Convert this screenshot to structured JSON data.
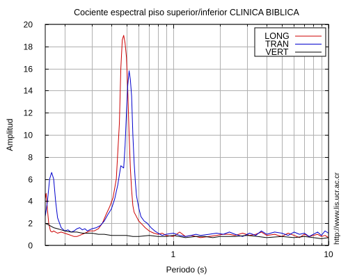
{
  "chart_data": {
    "type": "line",
    "title": "Cociente espectral piso superior/inferior  CLINICA BIBLICA",
    "xlabel": "Periodo (s)",
    "ylabel": "Amplitud",
    "xscale": "log",
    "xlim": [
      0.15,
      10
    ],
    "ylim": [
      0,
      20
    ],
    "grid": true,
    "legend_position": "top-right",
    "x_ticks": [
      {
        "value": 1,
        "label": "1"
      },
      {
        "value": 10,
        "label": "10"
      }
    ],
    "y_ticks": [
      {
        "value": 0,
        "label": "0"
      },
      {
        "value": 2,
        "label": "2"
      },
      {
        "value": 4,
        "label": "4"
      },
      {
        "value": 6,
        "label": "6"
      },
      {
        "value": 8,
        "label": "8"
      },
      {
        "value": 10,
        "label": "10"
      },
      {
        "value": 12,
        "label": "12"
      },
      {
        "value": 14,
        "label": "14"
      },
      {
        "value": 16,
        "label": "16"
      },
      {
        "value": 18,
        "label": "18"
      },
      {
        "value": 20,
        "label": "20"
      }
    ],
    "series": [
      {
        "name": "LONG",
        "color": "#cc0000",
        "x": [
          0.15,
          0.152,
          0.155,
          0.158,
          0.162,
          0.166,
          0.17,
          0.175,
          0.18,
          0.19,
          0.2,
          0.21,
          0.22,
          0.23,
          0.24,
          0.25,
          0.27,
          0.29,
          0.31,
          0.33,
          0.35,
          0.37,
          0.39,
          0.41,
          0.43,
          0.45,
          0.46,
          0.47,
          0.48,
          0.49,
          0.5,
          0.51,
          0.52,
          0.53,
          0.54,
          0.55,
          0.56,
          0.58,
          0.6,
          0.63,
          0.66,
          0.7,
          0.75,
          0.8,
          0.85,
          0.9,
          1.0,
          1.1,
          1.2,
          1.3,
          1.4,
          1.5,
          1.7,
          1.9,
          2.1,
          2.3,
          2.5,
          2.8,
          3.1,
          3.4,
          3.7,
          4.0,
          4.5,
          5.0,
          5.5,
          6.0,
          6.5,
          7.0,
          7.5,
          8.0,
          8.5,
          9.0,
          9.5,
          10.0
        ],
        "y": [
          4.2,
          4.7,
          3.2,
          2.0,
          1.3,
          1.2,
          1.3,
          1.2,
          1.1,
          1.2,
          1.1,
          1.0,
          0.9,
          0.8,
          0.8,
          0.9,
          1.1,
          1.3,
          1.3,
          1.5,
          2.0,
          2.8,
          3.5,
          4.3,
          6.0,
          11.0,
          16.0,
          18.6,
          19.0,
          18.3,
          17.0,
          14.0,
          10.0,
          7.0,
          5.0,
          3.6,
          3.0,
          2.6,
          2.2,
          1.9,
          1.6,
          1.3,
          1.1,
          1.0,
          1.1,
          0.9,
          0.8,
          1.2,
          0.8,
          0.9,
          0.8,
          0.7,
          0.8,
          0.9,
          1.0,
          1.0,
          0.9,
          1.1,
          0.9,
          1.0,
          1.2,
          0.9,
          1.0,
          0.8,
          1.1,
          0.9,
          0.7,
          1.0,
          0.8,
          0.9,
          1.0,
          0.8,
          0.9,
          0.7
        ]
      },
      {
        "name": "TRAN",
        "color": "#0000cc",
        "x": [
          0.15,
          0.155,
          0.16,
          0.165,
          0.17,
          0.175,
          0.18,
          0.19,
          0.2,
          0.21,
          0.22,
          0.23,
          0.24,
          0.25,
          0.26,
          0.27,
          0.28,
          0.3,
          0.32,
          0.34,
          0.36,
          0.38,
          0.4,
          0.42,
          0.44,
          0.46,
          0.48,
          0.49,
          0.5,
          0.51,
          0.52,
          0.53,
          0.54,
          0.55,
          0.56,
          0.57,
          0.58,
          0.6,
          0.62,
          0.65,
          0.68,
          0.72,
          0.76,
          0.8,
          0.85,
          0.9,
          1.0,
          1.1,
          1.2,
          1.3,
          1.4,
          1.5,
          1.7,
          1.9,
          2.1,
          2.3,
          2.5,
          2.8,
          3.1,
          3.4,
          3.7,
          4.0,
          4.5,
          5.0,
          5.5,
          6.0,
          6.5,
          7.0,
          7.5,
          8.0,
          8.5,
          9.0,
          9.5,
          10.0
        ],
        "y": [
          2.6,
          4.0,
          6.0,
          6.6,
          6.0,
          4.0,
          2.5,
          1.6,
          1.3,
          1.4,
          1.2,
          1.3,
          1.5,
          1.6,
          1.4,
          1.5,
          1.3,
          1.5,
          1.6,
          1.8,
          2.2,
          2.8,
          3.3,
          4.2,
          5.5,
          7.2,
          7.0,
          9.0,
          12.0,
          14.5,
          15.8,
          15.0,
          13.5,
          10.0,
          7.5,
          5.8,
          4.5,
          3.4,
          2.6,
          2.2,
          2.0,
          1.6,
          1.3,
          1.1,
          0.9,
          1.0,
          1.1,
          0.9,
          0.8,
          0.9,
          1.0,
          0.9,
          1.0,
          1.1,
          1.0,
          1.2,
          1.0,
          0.8,
          1.1,
          0.9,
          1.3,
          1.0,
          1.2,
          1.1,
          0.9,
          1.2,
          1.0,
          1.1,
          0.8,
          1.0,
          1.2,
          0.9,
          1.3,
          1.1
        ]
      },
      {
        "name": "VERT",
        "color": "#000000",
        "x": [
          0.15,
          0.16,
          0.17,
          0.18,
          0.19,
          0.2,
          0.22,
          0.24,
          0.26,
          0.28,
          0.3,
          0.33,
          0.36,
          0.4,
          0.45,
          0.5,
          0.55,
          0.6,
          0.7,
          0.8,
          0.9,
          1.0,
          1.2,
          1.4,
          1.6,
          1.8,
          2.0,
          2.5,
          3.0,
          3.5,
          4.0,
          5.0,
          6.0,
          7.0,
          8.0,
          9.0,
          10.0
        ],
        "y": [
          2.0,
          1.8,
          1.6,
          1.5,
          1.4,
          1.3,
          1.2,
          1.2,
          1.1,
          1.1,
          1.1,
          1.0,
          1.0,
          0.9,
          0.9,
          0.9,
          0.8,
          0.8,
          0.9,
          0.8,
          0.8,
          0.9,
          0.7,
          0.8,
          0.8,
          0.7,
          0.8,
          0.8,
          0.9,
          0.8,
          0.7,
          0.8,
          0.7,
          0.8,
          0.7,
          0.6,
          0.7
        ]
      }
    ]
  },
  "watermark": "http://www.lis.ucr.ac.cr"
}
